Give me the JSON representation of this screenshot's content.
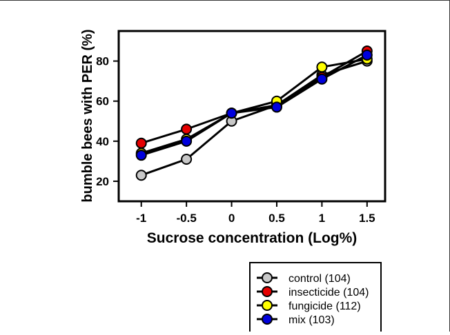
{
  "chart_data": {
    "type": "line",
    "xlabel": "Sucrose concentration (Log%)",
    "ylabel": "bumble bees with PER (%)",
    "x": [
      -1,
      -0.5,
      0,
      0.5,
      1,
      1.5
    ],
    "x_tick_labels": [
      "-1",
      "-0.5",
      "0",
      "0.5",
      "1",
      "1.5"
    ],
    "y_ticks": [
      20,
      40,
      60,
      80
    ],
    "xlim": [
      -1.25,
      1.7
    ],
    "ylim": [
      10,
      95
    ],
    "grid": false,
    "legend_position": "bottom-right, outside plot",
    "series": [
      {
        "name": "control (104)",
        "color": "#c8c8c8",
        "values": [
          23,
          31,
          50,
          58,
          73,
          80
        ]
      },
      {
        "name": "insecticide (104)",
        "color": "#e60000",
        "values": [
          39,
          46,
          54,
          58,
          72,
          85
        ]
      },
      {
        "name": "fungicide (112)",
        "color": "#ffff00",
        "values": [
          34,
          41,
          54,
          60,
          77,
          81
        ]
      },
      {
        "name": "mix (103)",
        "color": "#0000dd",
        "values": [
          33,
          40,
          54,
          57,
          71,
          83
        ]
      }
    ]
  }
}
